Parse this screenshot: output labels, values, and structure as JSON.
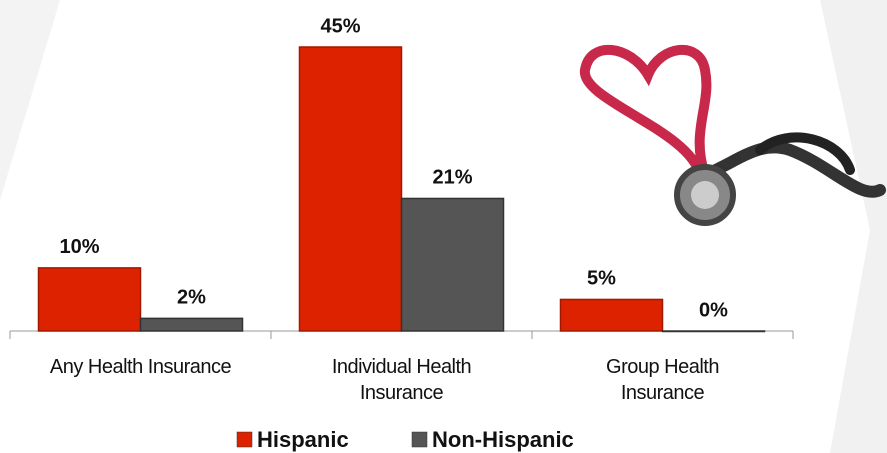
{
  "chart_data": {
    "type": "bar",
    "categories": [
      "Any Health Insurance",
      "Individual Health Insurance",
      "Group Health Insurance"
    ],
    "series": [
      {
        "name": "Hispanic",
        "color": "#dd2200",
        "values": [
          10,
          45,
          5
        ],
        "value_labels": [
          "10%",
          "45%",
          "5%"
        ]
      },
      {
        "name": "Non-Hispanic",
        "color": "#555555",
        "values": [
          2,
          21,
          0
        ],
        "value_labels": [
          "2%",
          "21%",
          "0%"
        ]
      }
    ]
  }
}
